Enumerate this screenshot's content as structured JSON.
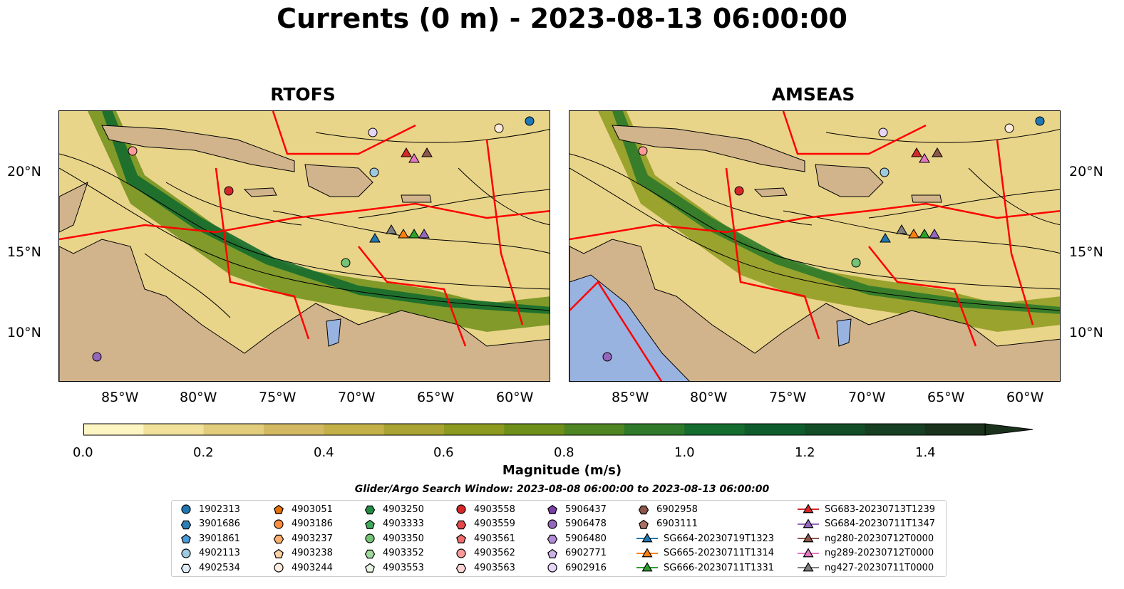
{
  "title": "Currents (0 m) - 2023-08-13 06:00:00",
  "panels": [
    {
      "title": "RTOFS"
    },
    {
      "title": "AMSEAS"
    }
  ],
  "lon_ticks": [
    "85°W",
    "80°W",
    "75°W",
    "70°W",
    "65°W",
    "60°W"
  ],
  "lat_ticks": [
    "20°N",
    "15°N",
    "10°N"
  ],
  "colorbar": {
    "label": "Magnitude (m/s)",
    "ticks": [
      "0.0",
      "0.2",
      "0.4",
      "0.6",
      "0.8",
      "1.0",
      "1.2",
      "1.4"
    ],
    "colors": [
      "#fdf6c3",
      "#f1e19a",
      "#e2cd7c",
      "#d3b962",
      "#c3b048",
      "#a8a332",
      "#8c9a1f",
      "#6e8f1a",
      "#4f8522",
      "#2e7a2a",
      "#146c2e",
      "#0e5c2b",
      "#124d27",
      "#173f22",
      "#1a321c"
    ]
  },
  "search_window": "Glider/Argo Search Window: 2023-08-08 06:00:00 to 2023-08-13 06:00:00",
  "legend": [
    [
      {
        "label": "1902313",
        "marker": "circle",
        "color": "#1f77b4"
      },
      {
        "label": "3901686",
        "marker": "hexagon",
        "color": "#2c7fb8"
      },
      {
        "label": "3901861",
        "marker": "pentagon",
        "color": "#4a9ad6"
      },
      {
        "label": "4902113",
        "marker": "circle",
        "color": "#9ecae1"
      },
      {
        "label": "4902534",
        "marker": "hexagon",
        "color": "#deebf7"
      }
    ],
    [
      {
        "label": "4903051",
        "marker": "pentagon",
        "color": "#e6700a"
      },
      {
        "label": "4903186",
        "marker": "circle",
        "color": "#fd8d3c"
      },
      {
        "label": "4903237",
        "marker": "hexagon",
        "color": "#fdae6b"
      },
      {
        "label": "4903238",
        "marker": "pentagon",
        "color": "#fdd0a2"
      },
      {
        "label": "4903244",
        "marker": "circle",
        "color": "#feedde"
      }
    ],
    [
      {
        "label": "4903250",
        "marker": "hexagon",
        "color": "#238b45"
      },
      {
        "label": "4903333",
        "marker": "pentagon",
        "color": "#41ab5d"
      },
      {
        "label": "4903350",
        "marker": "circle",
        "color": "#74c476"
      },
      {
        "label": "4903352",
        "marker": "hexagon",
        "color": "#a1d99b"
      },
      {
        "label": "4903553",
        "marker": "pentagon",
        "color": "#e5f5e0"
      }
    ],
    [
      {
        "label": "4903558",
        "marker": "circle",
        "color": "#d62728"
      },
      {
        "label": "4903559",
        "marker": "hexagon",
        "color": "#e3484a"
      },
      {
        "label": "4903561",
        "marker": "pentagon",
        "color": "#f06b6b"
      },
      {
        "label": "4903562",
        "marker": "circle",
        "color": "#fc9a9a"
      },
      {
        "label": "4903563",
        "marker": "hexagon",
        "color": "#fdd2d2"
      }
    ],
    [
      {
        "label": "5906437",
        "marker": "pentagon",
        "color": "#7b3fa8"
      },
      {
        "label": "5906478",
        "marker": "circle",
        "color": "#9467bd"
      },
      {
        "label": "5906480",
        "marker": "hexagon",
        "color": "#b28bd6"
      },
      {
        "label": "6902771",
        "marker": "pentagon",
        "color": "#cdb2e8"
      },
      {
        "label": "6902916",
        "marker": "circle",
        "color": "#e6d5f7"
      }
    ],
    [
      {
        "label": "6902958",
        "marker": "hexagon",
        "color": "#8c564b"
      },
      {
        "label": "6903111",
        "marker": "pentagon",
        "color": "#a87063"
      },
      {
        "label": "SG664-20230719T1323",
        "marker": "triangle-line",
        "color": "#1f77b4"
      },
      {
        "label": "SG665-20230711T1314",
        "marker": "triangle-line",
        "color": "#ff7f0e"
      },
      {
        "label": "SG666-20230711T1331",
        "marker": "triangle-line",
        "color": "#2ca02c"
      }
    ],
    [
      {
        "label": "SG683-20230713T1239",
        "marker": "triangle-line",
        "color": "#d62728"
      },
      {
        "label": "SG684-20230711T1347",
        "marker": "triangle-line",
        "color": "#9467bd"
      },
      {
        "label": "ng280-20230712T0000",
        "marker": "triangle-line",
        "color": "#8c564b"
      },
      {
        "label": "ng289-20230712T0000",
        "marker": "triangle-line",
        "color": "#e377c2"
      },
      {
        "label": "ng427-20230711T0000",
        "marker": "triangle-line",
        "color": "#7f7f7f"
      }
    ]
  ],
  "colors": {
    "land": "#d2b48c",
    "eez": "#ff0000",
    "water_body": "#99b3e0",
    "streamline": "#000000"
  }
}
